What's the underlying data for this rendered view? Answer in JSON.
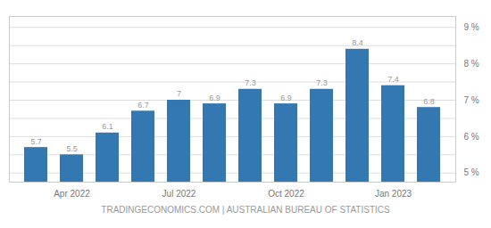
{
  "chart_data": {
    "type": "bar",
    "caption": "TRADINGECONOMICS.COM  |  AUSTRALIAN BUREAU OF STATISTICS",
    "categories": [
      null,
      "Apr 2022",
      null,
      null,
      "Jul 2022",
      null,
      null,
      "Oct 2022",
      null,
      null,
      "Jan 2023",
      null
    ],
    "values": [
      5.7,
      5.5,
      6.1,
      6.7,
      7.0,
      6.9,
      7.3,
      6.9,
      7.3,
      8.4,
      7.4,
      6.8
    ],
    "color": "#3378b0",
    "ylim": [
      4.75,
      9.3
    ],
    "yticks": [
      {
        "value": 5.0,
        "label": "5 %"
      },
      {
        "value": 5.5,
        "label": null
      },
      {
        "value": 6.0,
        "label": "6 %"
      },
      {
        "value": 6.5,
        "label": null
      },
      {
        "value": 7.0,
        "label": "7 %"
      },
      {
        "value": 7.5,
        "label": null
      },
      {
        "value": 8.0,
        "label": "8 %"
      },
      {
        "value": 8.5,
        "label": null
      },
      {
        "value": 9.0,
        "label": "9 %"
      }
    ],
    "grid": true,
    "data_labels": true
  }
}
